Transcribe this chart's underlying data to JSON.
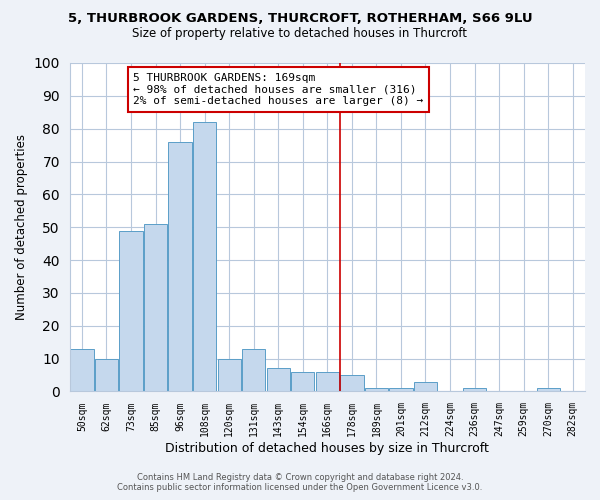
{
  "title": "5, THURBROOK GARDENS, THURCROFT, ROTHERHAM, S66 9LU",
  "subtitle": "Size of property relative to detached houses in Thurcroft",
  "xlabel": "Distribution of detached houses by size in Thurcroft",
  "ylabel": "Number of detached properties",
  "bin_labels": [
    "50sqm",
    "62sqm",
    "73sqm",
    "85sqm",
    "96sqm",
    "108sqm",
    "120sqm",
    "131sqm",
    "143sqm",
    "154sqm",
    "166sqm",
    "178sqm",
    "189sqm",
    "201sqm",
    "212sqm",
    "224sqm",
    "236sqm",
    "247sqm",
    "259sqm",
    "270sqm",
    "282sqm"
  ],
  "bar_heights": [
    13,
    10,
    49,
    51,
    76,
    82,
    10,
    13,
    7,
    6,
    6,
    5,
    1,
    1,
    3,
    0,
    1,
    0,
    0,
    1,
    0
  ],
  "bar_color": "#c5d8ed",
  "bar_edge_color": "#5a9ec8",
  "vline_color": "#cc0000",
  "annotation_title": "5 THURBROOK GARDENS: 169sqm",
  "annotation_line1": "← 98% of detached houses are smaller (316)",
  "annotation_line2": "2% of semi-detached houses are larger (8) →",
  "annotation_box_color": "#ffffff",
  "annotation_box_edge": "#cc0000",
  "ylim": [
    0,
    100
  ],
  "yticks": [
    0,
    10,
    20,
    30,
    40,
    50,
    60,
    70,
    80,
    90,
    100
  ],
  "footer_line1": "Contains HM Land Registry data © Crown copyright and database right 2024.",
  "footer_line2": "Contains public sector information licensed under the Open Government Licence v3.0.",
  "bg_color": "#eef2f8",
  "plot_bg_color": "#ffffff",
  "grid_color": "#b8c8dc"
}
